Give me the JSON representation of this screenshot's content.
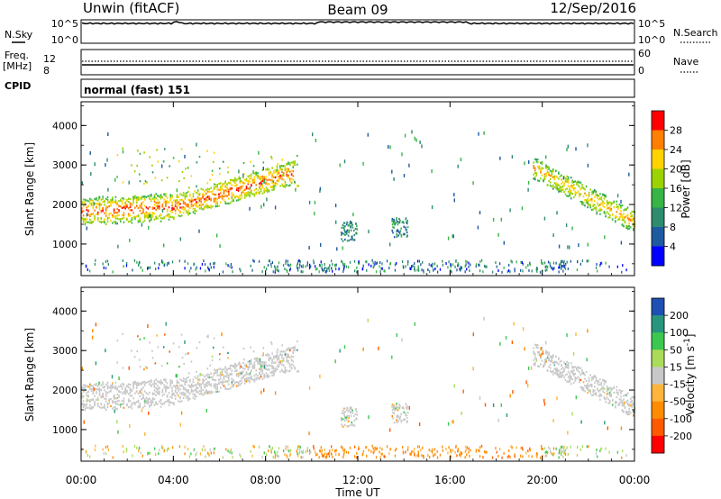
{
  "header": {
    "title": "Unwin (fitACF)",
    "beam": "Beam 09",
    "date": "12/Sep/2016"
  },
  "nsky_panel": {
    "label": "N.Sky",
    "right_label": "N.Search",
    "left_ticks": [
      "10^5",
      "10^0"
    ],
    "right_ticks": [
      "10^5",
      "10^0"
    ]
  },
  "freq_panel": {
    "label_line1": "Freq.",
    "label_line2": "[MHz]",
    "left_ticks": [
      "12",
      "8"
    ],
    "right_ticks": [
      "60",
      "0"
    ],
    "right_label": "Nave"
  },
  "cpid_panel": {
    "label": "CPID",
    "value": "normal (fast) 151"
  },
  "chart_data": [
    {
      "type": "heatmap",
      "quantity": "Power",
      "ylabel": "Slant Range [km]",
      "y_ticks": [
        1000,
        2000,
        3000,
        4000
      ],
      "ylim": [
        200,
        4600
      ],
      "colorbar": {
        "label": "Power [dB]",
        "ticks": [
          "28",
          "24",
          "20",
          "16",
          "12",
          "8",
          "4"
        ],
        "colors": [
          "#ff0000",
          "#ff7f00",
          "#ffd200",
          "#9bd200",
          "#37b446",
          "#2d8c6e",
          "#1e5aa0",
          "#0000ff"
        ]
      }
    },
    {
      "type": "heatmap",
      "quantity": "Velocity",
      "ylabel": "Slant Range [km]",
      "y_ticks": [
        1000,
        2000,
        3000,
        4000
      ],
      "ylim": [
        200,
        4600
      ],
      "colorbar": {
        "label": "Velocity [m s^-1]",
        "ticks": [
          "200",
          "100",
          "50",
          "15",
          "-15",
          "-50",
          "-100",
          "-200"
        ],
        "colors": [
          "#1e50b4",
          "#28967d",
          "#3cc850",
          "#aadc5a",
          "#c8c8c8",
          "#ffb43c",
          "#ff8c00",
          "#ff5a00",
          "#ff0000"
        ]
      }
    }
  ],
  "time_axis": {
    "label": "Time UT",
    "ticks": [
      "00:00",
      "04:00",
      "08:00",
      "12:00",
      "16:00",
      "20:00",
      "00:00"
    ]
  }
}
